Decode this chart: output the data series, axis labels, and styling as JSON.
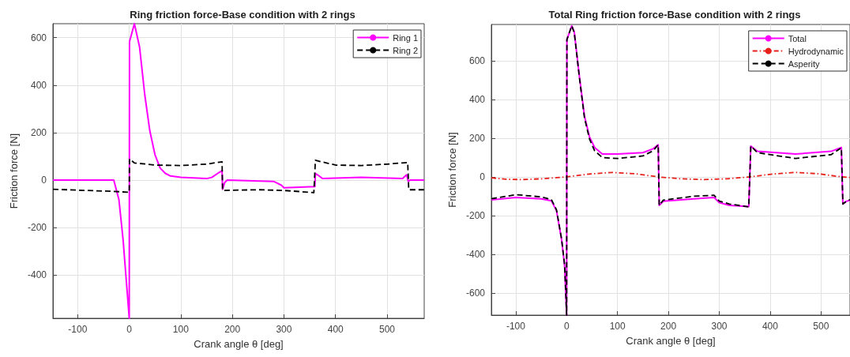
{
  "chart_data": [
    {
      "type": "line",
      "title": "Ring friction force-Base condition with 2 rings",
      "xlabel": "Crank angle θ [deg]",
      "ylabel": "Friction force [N]",
      "xlim": [
        -148,
        572
      ],
      "xticks": [
        -100,
        0,
        100,
        200,
        300,
        400,
        500
      ],
      "ylim": [
        -583,
        659
      ],
      "yticks": [
        -400,
        -200,
        0,
        200,
        400,
        600
      ],
      "grid": true,
      "legend": "top right",
      "marker": "none",
      "series": [
        {
          "name": "Ring 1",
          "color": "#ff00ff",
          "line_style": "solid",
          "x": [
            -148,
            -30,
            -20,
            -12,
            -4,
            0,
            0.5,
            10,
            20,
            30,
            40,
            50,
            60,
            70,
            80,
            100,
            150,
            160,
            175,
            180,
            181,
            185,
            190,
            280,
            295,
            300,
            360,
            361,
            365,
            375,
            450,
            530,
            538,
            541,
            545,
            572
          ],
          "values": [
            0,
            0,
            -83,
            -250,
            -472,
            -583,
            583,
            659,
            561,
            361,
            206,
            106,
            50,
            28,
            17,
            11,
            6,
            11,
            33,
            39,
            -39,
            -11,
            0,
            -6,
            -22,
            -33,
            -28,
            28,
            22,
            6,
            11,
            6,
            22,
            -6,
            0,
            0
          ]
        },
        {
          "name": "Ring 2",
          "color": "#000000",
          "line_style": "dashed",
          "x": [
            -148,
            -30,
            0,
            0.5,
            10,
            50,
            100,
            150,
            180,
            181,
            250,
            300,
            358,
            361,
            400,
            450,
            500,
            540,
            542,
            572
          ],
          "values": [
            -39,
            -48,
            -52,
            89,
            72,
            63,
            61,
            67,
            77,
            -44,
            -41,
            -44,
            -53,
            83,
            63,
            61,
            67,
            74,
            -41,
            -41
          ]
        }
      ]
    },
    {
      "type": "line",
      "title": "Total Ring friction force-Base condition with 2 rings",
      "xlabel": "Crank angle θ [deg]",
      "ylabel": "Friction force [N]",
      "xlim": [
        -148,
        557
      ],
      "xticks": [
        -100,
        0,
        100,
        200,
        300,
        400,
        500
      ],
      "ylim": [
        -714,
        787
      ],
      "yticks": [
        -600,
        -400,
        -200,
        0,
        200,
        400,
        600
      ],
      "grid": true,
      "legend": "top right",
      "marker": "none",
      "series": [
        {
          "name": "Total",
          "color": "#ff00ff",
          "line_style": "solid",
          "x": [
            -148,
            -100,
            -50,
            -30,
            -20,
            -10,
            -4,
            0,
            0.5,
            10,
            15,
            25,
            35,
            45,
            55,
            70,
            100,
            150,
            170,
            180,
            182,
            190,
            250,
            290,
            300,
            320,
            358,
            362,
            375,
            450,
            520,
            540,
            543,
            550,
            557
          ],
          "values": [
            -119,
            -106,
            -113,
            -124,
            -174,
            -323,
            -459,
            -714,
            709,
            780,
            749,
            519,
            315,
            206,
            152,
            118,
            118,
            125,
            145,
            166,
            -147,
            -126,
            -113,
            -106,
            -133,
            -147,
            -153,
            159,
            132,
            118,
            132,
            152,
            -140,
            -126,
            -120
          ]
        },
        {
          "name": "Hydrodynamic",
          "color": "#e8201a",
          "line_style": "dashdot",
          "x": [
            -148,
            -120,
            -90,
            -50,
            -20,
            0,
            45,
            90,
            135,
            180,
            225,
            270,
            315,
            360,
            405,
            450,
            495,
            540,
            557
          ],
          "values": [
            -5,
            -12,
            -14,
            -10,
            -4,
            0,
            15,
            23,
            16,
            0,
            -10,
            -14,
            -10,
            0,
            15,
            23,
            16,
            0,
            -3
          ]
        },
        {
          "name": "Asperity",
          "color": "#000000",
          "line_style": "dashed",
          "x": [
            -148,
            -100,
            -50,
            -30,
            -20,
            -10,
            -4,
            0,
            0.5,
            10,
            15,
            25,
            35,
            45,
            55,
            70,
            100,
            150,
            170,
            180,
            182,
            190,
            250,
            290,
            300,
            320,
            358,
            362,
            375,
            450,
            520,
            540,
            543,
            550,
            557
          ],
          "values": [
            -113,
            -92,
            -103,
            -117,
            -170,
            -320,
            -455,
            -714,
            709,
            780,
            745,
            515,
            305,
            195,
            135,
            100,
            95,
            108,
            135,
            166,
            -147,
            -120,
            -100,
            -95,
            -125,
            -140,
            -155,
            159,
            125,
            95,
            115,
            150,
            -140,
            -125,
            -118
          ]
        }
      ]
    }
  ]
}
